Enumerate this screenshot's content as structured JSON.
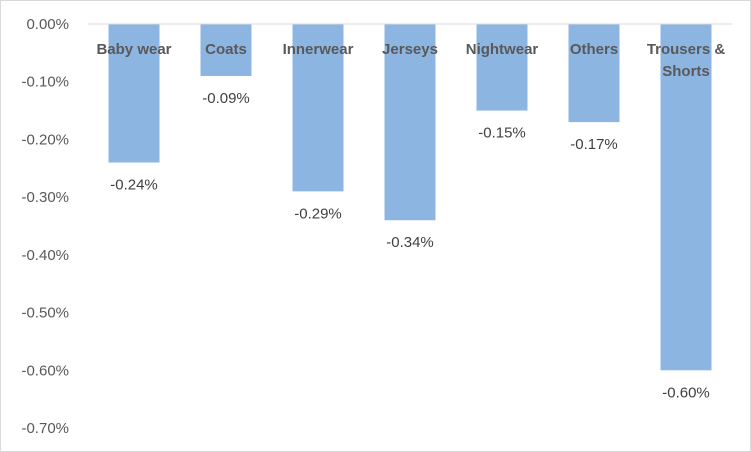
{
  "chart_data": {
    "type": "bar",
    "categories": [
      "Baby wear",
      "Coats",
      "Innerwear",
      "Jerseys",
      "Nightwear",
      "Others",
      "Trousers & Shorts"
    ],
    "category_lines": [
      [
        "Baby wear"
      ],
      [
        "Coats"
      ],
      [
        "Innerwear"
      ],
      [
        "Jerseys"
      ],
      [
        "Nightwear"
      ],
      [
        "Others"
      ],
      [
        "Trousers &",
        "Shorts"
      ]
    ],
    "values": [
      -0.24,
      -0.09,
      -0.29,
      -0.34,
      -0.15,
      -0.17,
      -0.6
    ],
    "data_labels": [
      "-0.24%",
      "-0.09%",
      "-0.29%",
      "-0.34%",
      "-0.15%",
      "-0.17%",
      "-0.60%"
    ],
    "y_ticks": [
      0.0,
      -0.1,
      -0.2,
      -0.3,
      -0.4,
      -0.5,
      -0.6,
      -0.7
    ],
    "y_tick_labels": [
      "0.00%",
      "-0.10%",
      "-0.20%",
      "-0.30%",
      "-0.40%",
      "-0.50%",
      "-0.60%",
      "-0.70%"
    ],
    "ylim": [
      -0.7,
      0.0
    ],
    "title": "",
    "xlabel": "",
    "ylabel": "",
    "grid": false,
    "legend": "none",
    "colors": {
      "bar": "#8db5e1",
      "axis": "#d9d9d9",
      "tick_text": "#595959",
      "label_text": "#404040"
    }
  }
}
